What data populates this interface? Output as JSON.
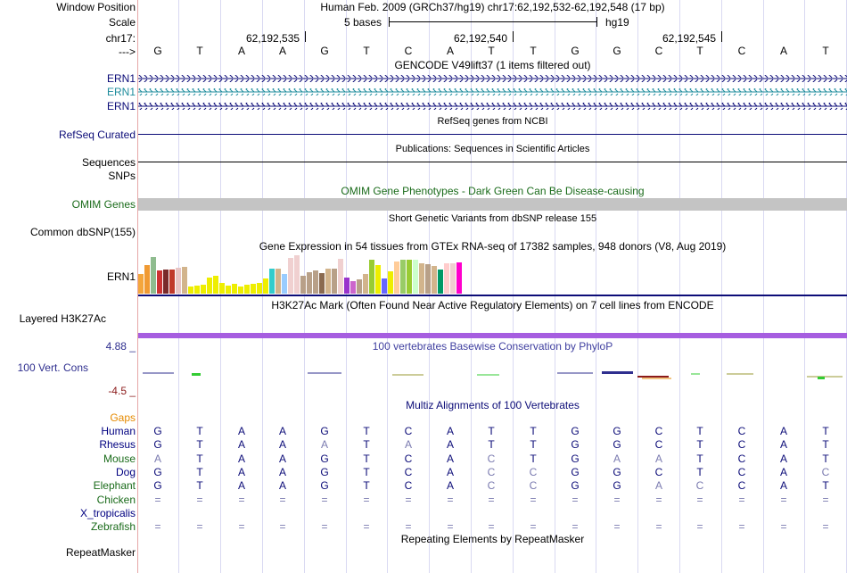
{
  "header": {
    "window_position_label": "Window Position",
    "window_position_text": "Human Feb. 2009 (GRCh37/hg19)   chr17:62,192,532-62,192,548 (17 bp)",
    "scale_label": "Scale",
    "scale_text": "5 bases",
    "assembly": "hg19",
    "chrom_label": "chr17:",
    "arrow_label": "--->",
    "coords": [
      "62,192,535",
      "62,192,540",
      "62,192,545"
    ]
  },
  "sequence": [
    "G",
    "T",
    "A",
    "A",
    "G",
    "T",
    "C",
    "A",
    "T",
    "T",
    "G",
    "G",
    "C",
    "T",
    "C",
    "A",
    "T"
  ],
  "tracks": {
    "gencode_title": "GENCODE V49lift37 (1 items filtered out)",
    "gencode_items": [
      "ERN1",
      "ERN1",
      "ERN1"
    ],
    "refseq_title": "RefSeq genes from NCBI",
    "refseq_label": "RefSeq Curated",
    "pubs_title": "Publications: Sequences in Scientific Articles",
    "pubs_label": "Sequences",
    "snps_label": "SNPs",
    "omim_title": "OMIM Gene Phenotypes - Dark Green Can Be Disease-causing",
    "omim_label": "OMIM Genes",
    "dbsnp_title": "Short Genetic Variants from dbSNP release 155",
    "dbsnp_label": "Common dbSNP(155)",
    "gtex_title": "Gene Expression in 54 tissues from GTEx RNA-seq of 17382 samples, 948 donors (V8, Aug 2019)",
    "gtex_label": "ERN1",
    "h3k27_title": "H3K27Ac Mark (Often Found Near Active Regulatory Elements) on 7 cell lines from ENCODE",
    "h3k27_label": "Layered H3K27Ac",
    "cons_title": "100 vertebrates Basewise Conservation by PhyloP",
    "cons_label": "100 Vert. Cons",
    "cons_max": "4.88 _",
    "cons_min": "-4.5 _",
    "multiz_title": "Multiz Alignments of 100 Vertebrates",
    "gaps_label": "Gaps",
    "rmsk_title": "Repeating Elements by RepeatMasker",
    "rmsk_label": "RepeatMasker"
  },
  "gtex_bars": [
    {
      "h": 22,
      "c": "#f4a63c"
    },
    {
      "h": 32,
      "c": "#f09a33"
    },
    {
      "h": 41,
      "c": "#8fbc8f"
    },
    {
      "h": 26,
      "c": "#cc3333"
    },
    {
      "h": 27,
      "c": "#7a2a2a"
    },
    {
      "h": 27,
      "c": "#c0392b"
    },
    {
      "h": 29,
      "c": "#e8c4c4"
    },
    {
      "h": 30,
      "c": "#d2b48c"
    },
    {
      "h": 8,
      "c": "#eeee00"
    },
    {
      "h": 9,
      "c": "#eeee00"
    },
    {
      "h": 10,
      "c": "#eeee00"
    },
    {
      "h": 18,
      "c": "#eeee00"
    },
    {
      "h": 20,
      "c": "#eeee00"
    },
    {
      "h": 12,
      "c": "#eeee00"
    },
    {
      "h": 9,
      "c": "#eeee00"
    },
    {
      "h": 11,
      "c": "#eeee00"
    },
    {
      "h": 8,
      "c": "#eeee00"
    },
    {
      "h": 10,
      "c": "#eeee00"
    },
    {
      "h": 11,
      "c": "#eeee00"
    },
    {
      "h": 12,
      "c": "#eeee00"
    },
    {
      "h": 17,
      "c": "#eeee00"
    },
    {
      "h": 28,
      "c": "#33cccc"
    },
    {
      "h": 28,
      "c": "#d2b48c"
    },
    {
      "h": 22,
      "c": "#99ccff"
    },
    {
      "h": 40,
      "c": "#f0d0d0"
    },
    {
      "h": 43,
      "c": "#f0d0d0"
    },
    {
      "h": 20,
      "c": "#b8a088"
    },
    {
      "h": 24,
      "c": "#b8a088"
    },
    {
      "h": 26,
      "c": "#b8a088"
    },
    {
      "h": 23,
      "c": "#8a6a50"
    },
    {
      "h": 28,
      "c": "#d2b48c"
    },
    {
      "h": 28,
      "c": "#b8a088"
    },
    {
      "h": 39,
      "c": "#f0d0d0"
    },
    {
      "h": 18,
      "c": "#9933cc"
    },
    {
      "h": 14,
      "c": "#cc66cc"
    },
    {
      "h": 16,
      "c": "#b8a088"
    },
    {
      "h": 22,
      "c": "#d2b48c"
    },
    {
      "h": 38,
      "c": "#99cc33"
    },
    {
      "h": 32,
      "c": "#eeee00"
    },
    {
      "h": 17,
      "c": "#6666ff"
    },
    {
      "h": 25,
      "c": "#eeee00"
    },
    {
      "h": 36,
      "c": "#ffcc99"
    },
    {
      "h": 38,
      "c": "#99cc66"
    },
    {
      "h": 38,
      "c": "#99cc33"
    },
    {
      "h": 38,
      "c": "#ccffcc"
    },
    {
      "h": 34,
      "c": "#d2b48c"
    },
    {
      "h": 33,
      "c": "#b8a088"
    },
    {
      "h": 31,
      "c": "#d2b48c"
    },
    {
      "h": 27,
      "c": "#009966"
    },
    {
      "h": 34,
      "c": "#ffcccc"
    },
    {
      "h": 34,
      "c": "#f0d0d0"
    },
    {
      "h": 35,
      "c": "#ff00cc"
    }
  ],
  "alignment": [
    {
      "species": "Human",
      "color": "#000080",
      "bases": [
        "G",
        "T",
        "A",
        "A",
        "G",
        "T",
        "C",
        "A",
        "T",
        "T",
        "G",
        "G",
        "C",
        "T",
        "C",
        "A",
        "T"
      ]
    },
    {
      "species": "Rhesus",
      "color": "#000080",
      "bases": [
        "G",
        "T",
        "A",
        "A",
        "A",
        "T",
        "A",
        "A",
        "T",
        "T",
        "G",
        "G",
        "C",
        "T",
        "C",
        "A",
        "T"
      ]
    },
    {
      "species": "Mouse",
      "color": "#1a6b1a",
      "bases": [
        "A",
        "T",
        "A",
        "A",
        "G",
        "T",
        "C",
        "A",
        "C",
        "T",
        "G",
        "A",
        "A",
        "T",
        "C",
        "A",
        "T"
      ]
    },
    {
      "species": "Dog",
      "color": "#000080",
      "bases": [
        "G",
        "T",
        "A",
        "A",
        "G",
        "T",
        "C",
        "A",
        "C",
        "C",
        "G",
        "G",
        "C",
        "T",
        "C",
        "A",
        "C"
      ]
    },
    {
      "species": "Elephant",
      "color": "#1a6b1a",
      "bases": [
        "G",
        "T",
        "A",
        "A",
        "G",
        "T",
        "C",
        "A",
        "C",
        "C",
        "G",
        "G",
        "A",
        "C",
        "C",
        "A",
        "T"
      ]
    },
    {
      "species": "Chicken",
      "color": "#1a6b1a",
      "bases": [
        "=",
        "=",
        "=",
        "=",
        "=",
        "=",
        "=",
        "=",
        "=",
        "=",
        "=",
        "=",
        "=",
        "=",
        "=",
        "=",
        "="
      ]
    },
    {
      "species": "X_tropicalis",
      "color": "#000080",
      "bases": [
        " ",
        " ",
        " ",
        " ",
        " ",
        " ",
        " ",
        " ",
        " ",
        " ",
        " ",
        " ",
        " ",
        " ",
        " ",
        " ",
        " "
      ]
    },
    {
      "species": "Zebrafish",
      "color": "#1a6b1a",
      "bases": [
        "=",
        "=",
        "=",
        "=",
        "=",
        "=",
        "=",
        "=",
        "=",
        "=",
        "=",
        "=",
        "=",
        "=",
        "=",
        "=",
        "="
      ]
    }
  ],
  "colors": {
    "navy": "#000080",
    "omim_green": "#1a6b1a",
    "gencode_blue": "#0c0c78",
    "gencode_teal": "#1e8c9c",
    "purple_h3k27": "#a65ee0",
    "mismatch": "#7b7bb0",
    "gaps_orange": "#e68a00",
    "cons_neg": "#8b1a1a",
    "cons_pos": "#2f2f8f",
    "cons_label": "#4040a0"
  }
}
